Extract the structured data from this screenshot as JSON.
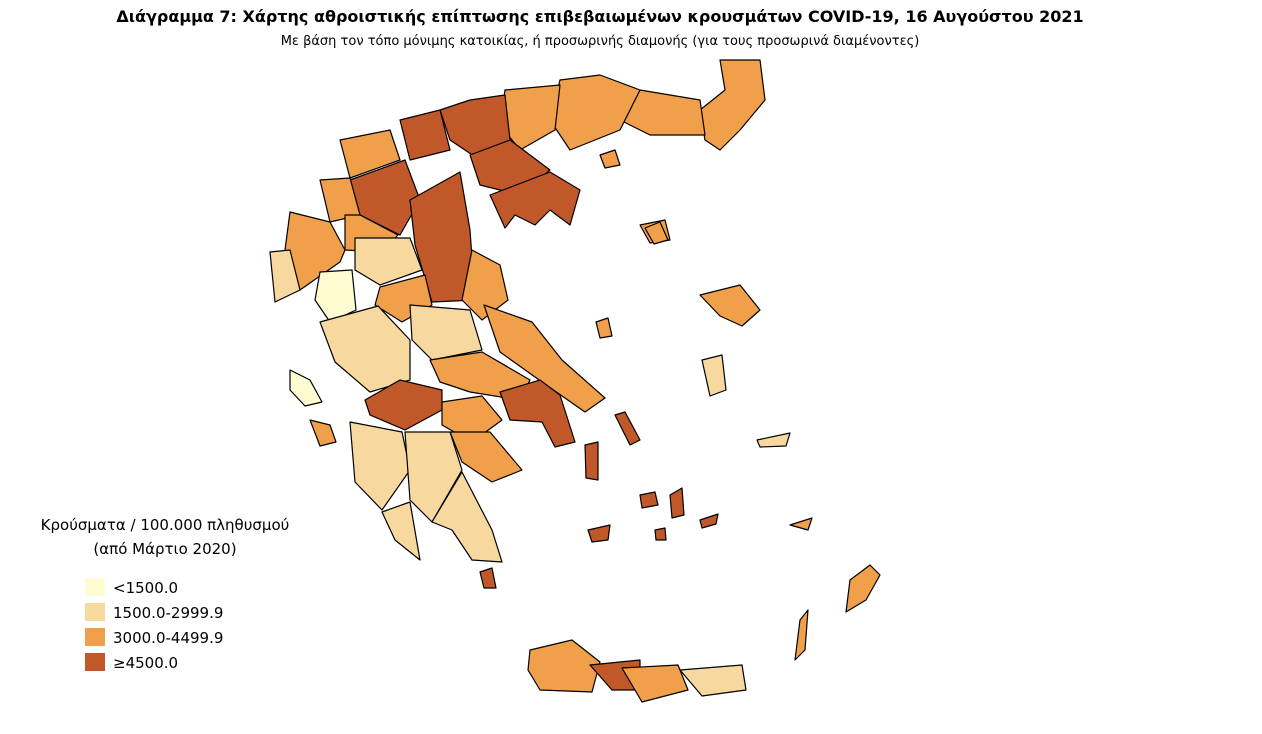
{
  "title": "Διάγραμμα 7: Χάρτης αθροιστικής επίπτωσης επιβεβαιωμένων κρουσμάτων COVID-19, 16 Αυγούστου 2021",
  "subtitle": "Με βάση τον τόπο μόνιμης κατοικίας, ή προσωρινής διαμονής (για τους προσωρινά διαμένοντες)",
  "legend": {
    "title": "Κρούσματα / 100.000 πληθυσμού",
    "subtitle": "(από Μάρτιο 2020)",
    "items": [
      {
        "label": "<1500.0",
        "color": "#fffcd2"
      },
      {
        "label": "1500.0-2999.9",
        "color": "#f7d9a0"
      },
      {
        "label": "3000.0-4499.9",
        "color": "#f0a04b"
      },
      {
        "label": "≥4500.0",
        "color": "#c0582a"
      }
    ]
  }
}
